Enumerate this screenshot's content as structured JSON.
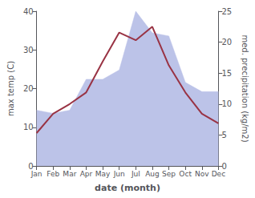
{
  "chart_data": {
    "type": "line",
    "xlabel": "date (month)",
    "ylabel": "max temp (C)",
    "y2label": "med. precipitation (kg/m2)",
    "categories": [
      "Jan",
      "Feb",
      "Mar",
      "Apr",
      "May",
      "Jun",
      "Jul",
      "Aug",
      "Sep",
      "Oct",
      "Nov",
      "Dec"
    ],
    "series": [
      {
        "type": "area",
        "axis": "y2",
        "color": "#bcc3e8",
        "values": [
          9.0,
          8.5,
          9.0,
          14.0,
          14.0,
          15.5,
          25.0,
          21.5,
          21.0,
          13.5,
          12.0,
          12.0
        ]
      },
      {
        "type": "line",
        "color": "#993344",
        "values": [
          8.5,
          13.5,
          16.0,
          19.0,
          27.0,
          34.5,
          32.5,
          36.0,
          26.0,
          19.0,
          13.5,
          11.0
        ]
      }
    ],
    "ylim": [
      0,
      40
    ],
    "yticks": [
      0,
      10,
      20,
      30,
      40
    ],
    "y2lim": [
      0,
      25
    ],
    "y2ticks": [
      0,
      5,
      10,
      15,
      20,
      25
    ],
    "grid": false
  }
}
